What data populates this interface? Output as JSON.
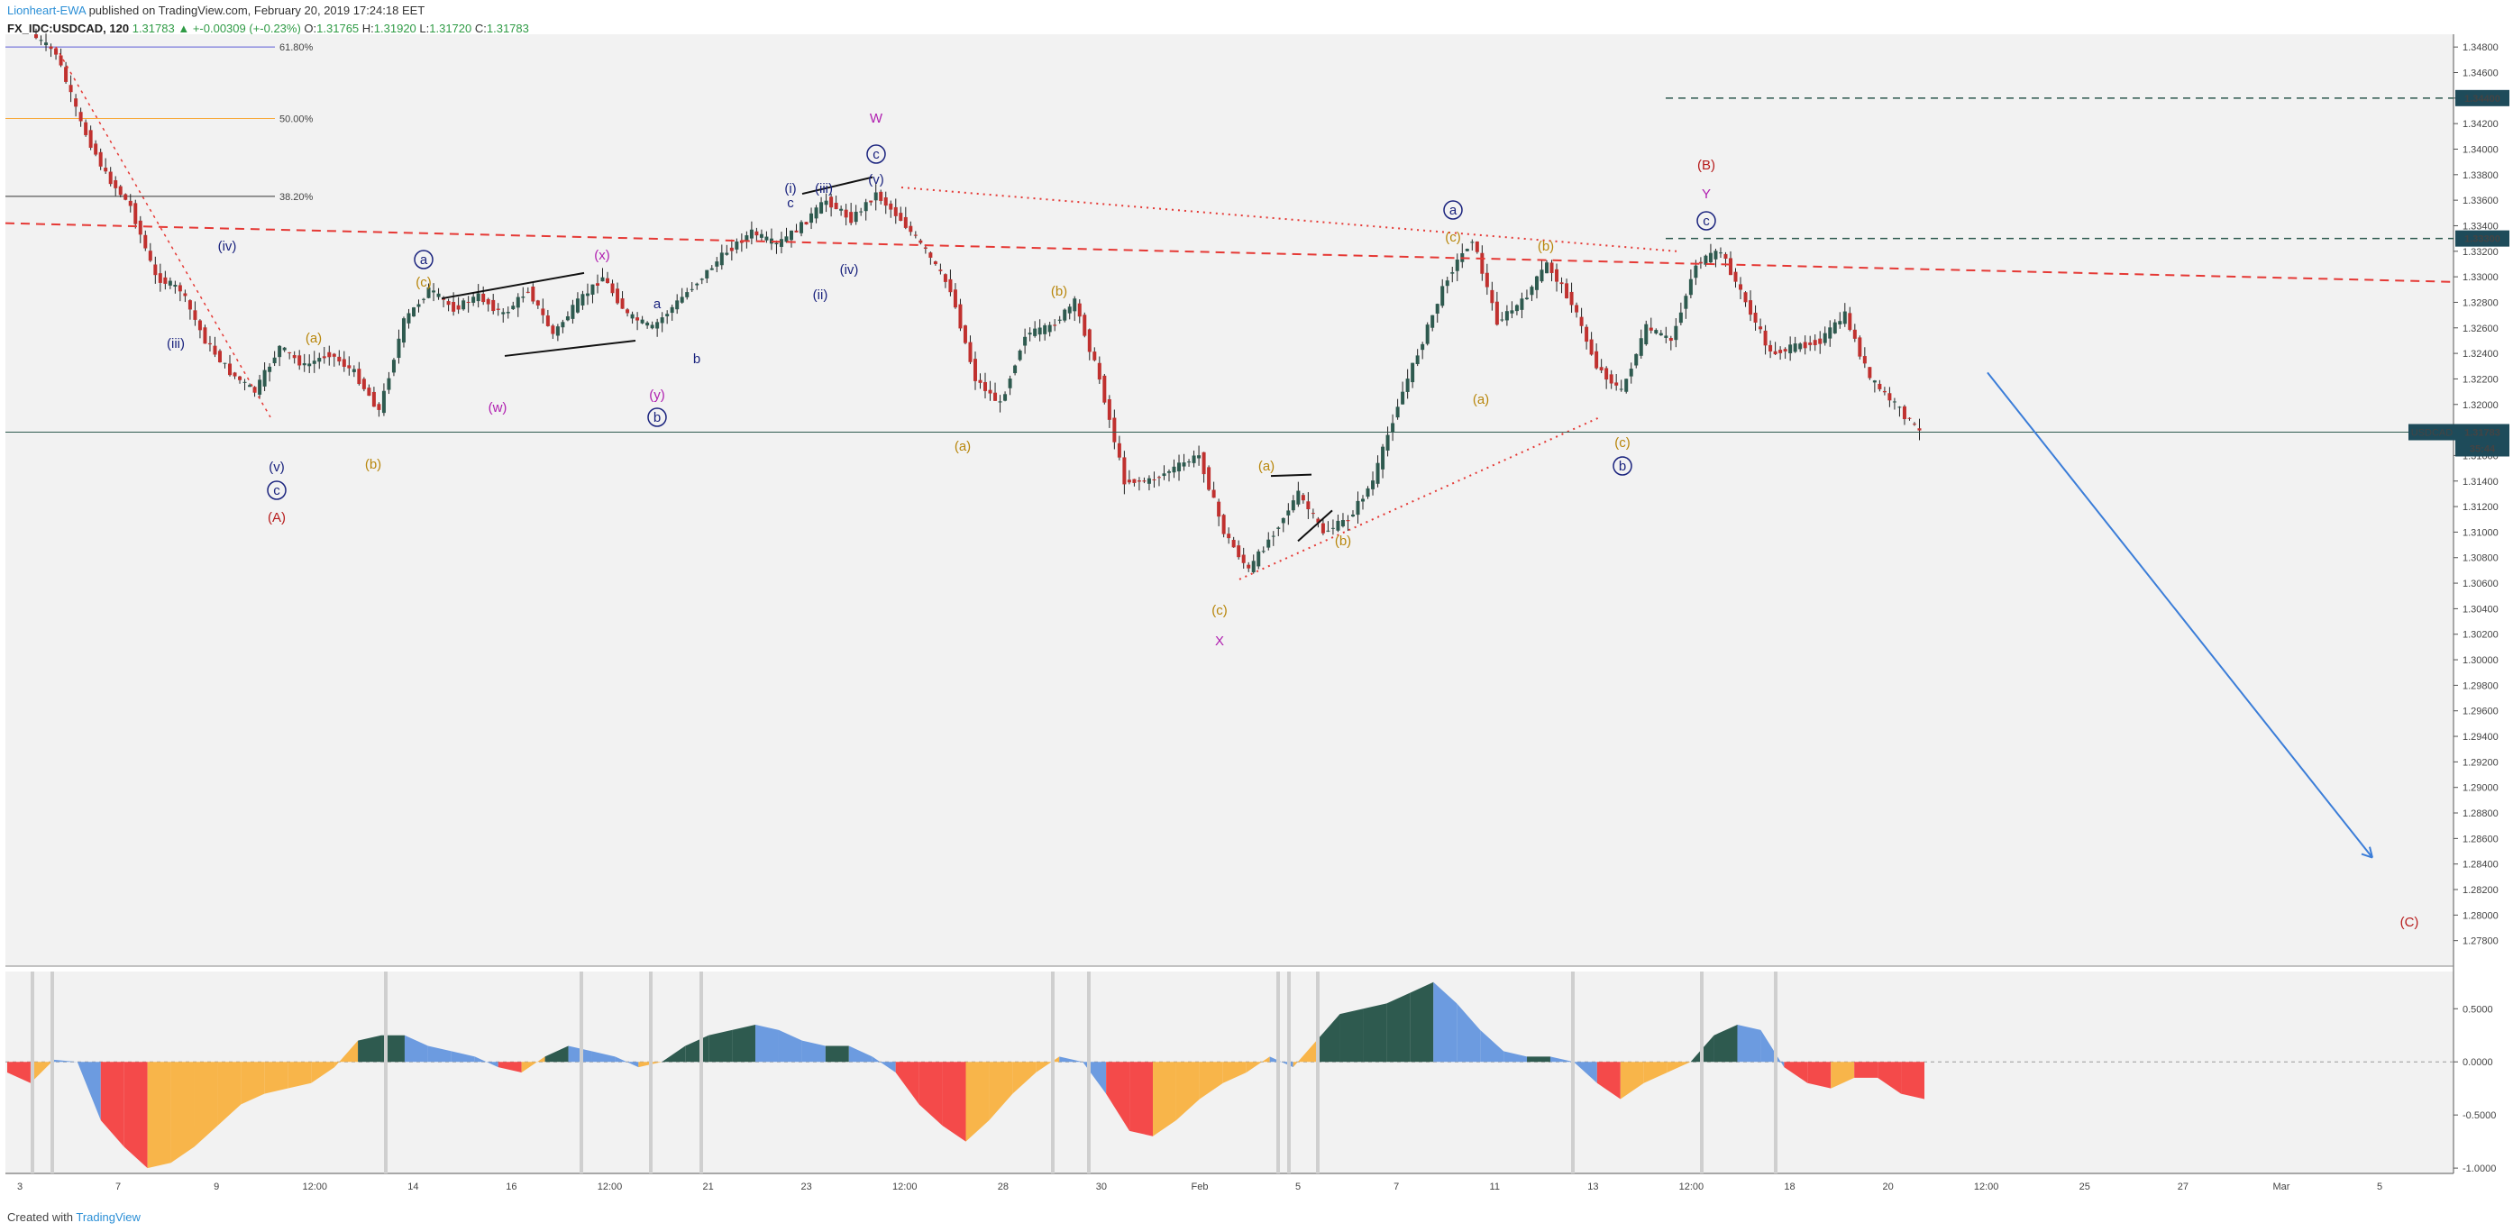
{
  "header": {
    "author": "Lionheart-EWA",
    "published": " published on TradingView.com, February 20, 2019 17:24:18 EET",
    "symbol": "FX_IDC:USDCAD, 120",
    "last": "1.31783",
    "change": "▲ +-0.00309 (+-0.23%)",
    "ohlc_o_label": "O:",
    "ohlc_o": "1.31765",
    "ohlc_h_label": "H:",
    "ohlc_h": "1.31920",
    "ohlc_l_label": "L:",
    "ohlc_l": "1.31720",
    "ohlc_c_label": "C:",
    "ohlc_c": "1.31783"
  },
  "footer": {
    "created_with": "Created with",
    "brand": "TradingView"
  },
  "colors": {
    "up": "#2e5a4f",
    "down": "#c0312f",
    "fib_618": "#5b5bd6",
    "fib_500": "#f7a93a",
    "fib_382": "#333333",
    "trend_red": "#e53935",
    "arrow_blue": "#3b7dd8",
    "hist_dark": "#2e5a4f",
    "hist_blue": "#6c9be0",
    "hist_red": "#f44a4a",
    "hist_orange": "#f8b54a",
    "wave_purple": "#b01fb0",
    "wave_red": "#b71c1c",
    "wave_navy": "#1a237e",
    "wave_brown": "#b8860b"
  },
  "chart_data": [
    {
      "type": "candlestick",
      "symbol": "FX_IDC:USDCAD",
      "interval": "120",
      "ylim": [
        1.276,
        1.349
      ],
      "price_ticks": [
        "1.34800",
        "1.34600",
        "1.34400",
        "1.34200",
        "1.34000",
        "1.33800",
        "1.33600",
        "1.33400",
        "1.33200",
        "1.33000",
        "1.32800",
        "1.32600",
        "1.32400",
        "1.32200",
        "1.32000",
        "1.31800",
        "1.31600",
        "1.31400",
        "1.31200",
        "1.31000",
        "1.30800",
        "1.30600",
        "1.30400",
        "1.30200",
        "1.30000",
        "1.29800",
        "1.29600",
        "1.29400",
        "1.29200",
        "1.29000",
        "1.28800",
        "1.28600",
        "1.28400",
        "1.28200",
        "1.28000",
        "1.27800"
      ],
      "price_labels": [
        {
          "text": "1.34400",
          "value": 1.344
        },
        {
          "text": "1.33300",
          "value": 1.333
        },
        {
          "text": "USDCAD",
          "value": 1.31783
        },
        {
          "text": "1.31783",
          "value": 1.31783
        },
        {
          "text": "35:44",
          "value": 1.3168
        }
      ],
      "time_ticks": [
        "3",
        "7",
        "9",
        "12:00",
        "14",
        "16",
        "12:00",
        "21",
        "23",
        "12:00",
        "28",
        "30",
        "Feb",
        "5",
        "7",
        "11",
        "13",
        "12:00",
        "18",
        "20",
        "12:00",
        "25",
        "27",
        "Mar",
        "5"
      ],
      "fib_levels": [
        {
          "label": "61.80%",
          "value": 1.348
        },
        {
          "label": "50.00%",
          "value": 1.3424
        },
        {
          "label": "38.20%",
          "value": 1.3363
        }
      ],
      "path_points": [
        1.349,
        1.3475,
        1.342,
        1.338,
        1.3355,
        1.33,
        1.329,
        1.325,
        1.3225,
        1.321,
        1.3245,
        1.323,
        1.324,
        1.3225,
        1.3195,
        1.3265,
        1.329,
        1.3275,
        1.3285,
        1.327,
        1.329,
        1.3255,
        1.328,
        1.33,
        1.327,
        1.326,
        1.328,
        1.33,
        1.332,
        1.3335,
        1.3325,
        1.334,
        1.336,
        1.3345,
        1.3365,
        1.3345,
        1.332,
        1.329,
        1.322,
        1.32,
        1.3255,
        1.326,
        1.328,
        1.322,
        1.314,
        1.314,
        1.315,
        1.316,
        1.31,
        1.307,
        1.31,
        1.313,
        1.31,
        1.311,
        1.314,
        1.32,
        1.325,
        1.33,
        1.333,
        1.3265,
        1.328,
        1.331,
        1.328,
        1.323,
        1.321,
        1.326,
        1.325,
        1.331,
        1.332,
        1.328,
        1.324,
        1.3245,
        1.325,
        1.327,
        1.322,
        1.32,
        1.31783
      ],
      "wave_labels": [
        {
          "text": "W",
          "color": "wave_purple"
        },
        {
          "text": "c",
          "circled": true,
          "color": "wave_navy"
        },
        {
          "text": "(v)",
          "color": "wave_navy"
        },
        {
          "text": "(i)",
          "color": "wave_navy"
        },
        {
          "text": "(iii)",
          "color": "wave_navy"
        },
        {
          "text": "c",
          "color": "wave_navy"
        },
        {
          "text": "(ii)",
          "color": "wave_navy"
        },
        {
          "text": "(iv)",
          "color": "wave_navy"
        },
        {
          "text": "(iv)",
          "color": "wave_navy"
        },
        {
          "text": "(iii)",
          "color": "wave_navy"
        },
        {
          "text": "a",
          "circled": true,
          "color": "wave_navy"
        },
        {
          "text": "(c)",
          "color": "wave_brown"
        },
        {
          "text": "(x)",
          "color": "wave_purple"
        },
        {
          "text": "a",
          "color": "wave_navy"
        },
        {
          "text": "b",
          "color": "wave_navy"
        },
        {
          "text": "(a)",
          "color": "wave_brown"
        },
        {
          "text": "(w)",
          "color": "wave_purple"
        },
        {
          "text": "(y)",
          "color": "wave_purple"
        },
        {
          "text": "b",
          "circled": true,
          "color": "wave_navy"
        },
        {
          "text": "(b)",
          "color": "wave_brown"
        },
        {
          "text": "(v)",
          "color": "wave_navy"
        },
        {
          "text": "c",
          "circled": true,
          "color": "wave_navy"
        },
        {
          "text": "(A)",
          "color": "wave_red"
        },
        {
          "text": "(b)",
          "color": "wave_brown"
        },
        {
          "text": "(a)",
          "color": "wave_brown"
        },
        {
          "text": "(a)",
          "color": "wave_brown"
        },
        {
          "text": "(b)",
          "color": "wave_brown"
        },
        {
          "text": "(c)",
          "color": "wave_brown"
        },
        {
          "text": "X",
          "color": "wave_purple"
        },
        {
          "text": "a",
          "circled": true,
          "color": "wave_navy"
        },
        {
          "text": "(c)",
          "color": "wave_brown"
        },
        {
          "text": "(b)",
          "color": "wave_brown"
        },
        {
          "text": "(a)",
          "color": "wave_brown"
        },
        {
          "text": "(c)",
          "color": "wave_brown"
        },
        {
          "text": "b",
          "circled": true,
          "color": "wave_navy"
        },
        {
          "text": "(B)",
          "color": "wave_red"
        },
        {
          "text": "Y",
          "color": "wave_purple"
        },
        {
          "text": "c",
          "circled": true,
          "color": "wave_navy"
        },
        {
          "text": "(C)",
          "color": "wave_red"
        }
      ]
    },
    {
      "type": "area",
      "name": "oscillator",
      "ylim": [
        -1.05,
        0.85
      ],
      "y_ticks": [
        "0.5000",
        "0.0000",
        "-0.5000",
        "-1.0000"
      ],
      "values": [
        -0.1,
        -0.2,
        0.02,
        0.0,
        -0.55,
        -0.8,
        -1.0,
        -0.95,
        -0.8,
        -0.6,
        -0.4,
        -0.3,
        -0.25,
        -0.2,
        -0.05,
        0.2,
        0.25,
        0.25,
        0.15,
        0.1,
        0.05,
        -0.05,
        -0.1,
        0.05,
        0.15,
        0.1,
        0.05,
        -0.05,
        0.0,
        0.15,
        0.25,
        0.3,
        0.35,
        0.3,
        0.2,
        0.15,
        0.15,
        0.05,
        -0.1,
        -0.4,
        -0.6,
        -0.75,
        -0.55,
        -0.3,
        -0.1,
        0.05,
        0.0,
        -0.3,
        -0.65,
        -0.7,
        -0.55,
        -0.35,
        -0.2,
        -0.1,
        0.05,
        -0.05,
        0.2,
        0.45,
        0.5,
        0.55,
        0.65,
        0.75,
        0.55,
        0.3,
        0.1,
        0.05,
        0.05,
        0.0,
        -0.2,
        -0.35,
        -0.2,
        -0.1,
        0.0,
        0.25,
        0.35,
        0.3,
        -0.05,
        -0.2,
        -0.25,
        -0.15,
        -0.15,
        -0.3,
        -0.35
      ]
    }
  ]
}
